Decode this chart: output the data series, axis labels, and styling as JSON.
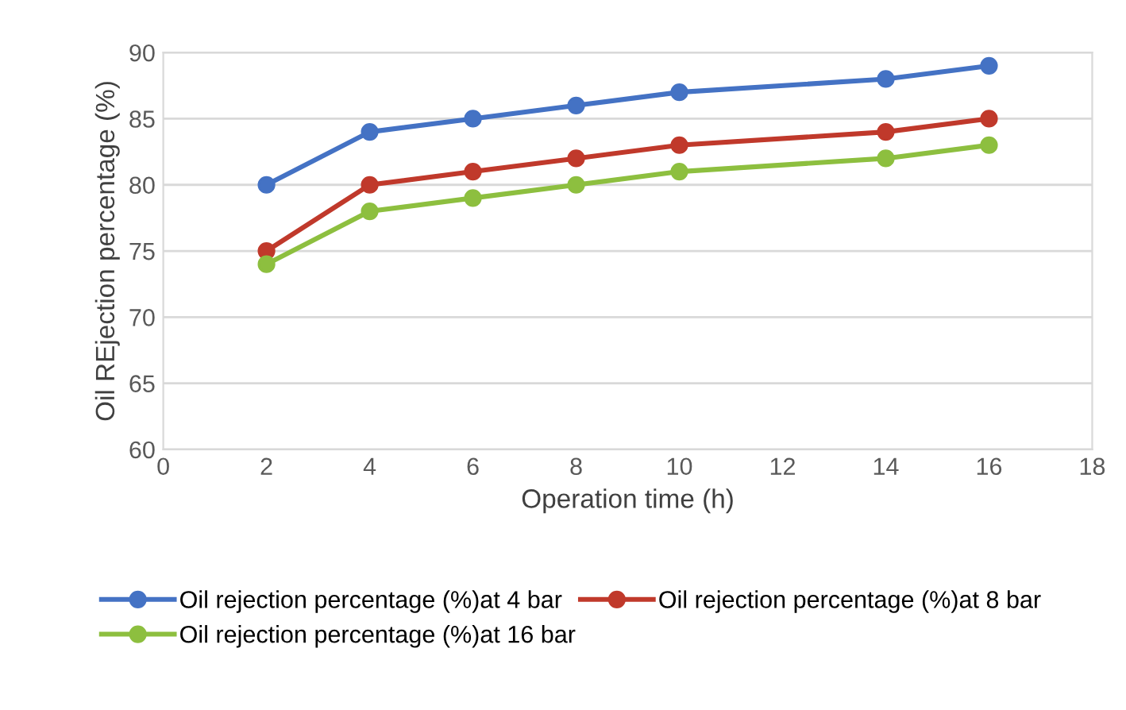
{
  "chart_data": {
    "type": "line",
    "xlabel": "Operation time (h)",
    "ylabel": "Oil REjection percentage (%)",
    "x": [
      2,
      4,
      6,
      8,
      10,
      14,
      16
    ],
    "series": [
      {
        "name": "Oil rejection percentage (%)at 4 bar",
        "color": "#4472c4",
        "values": [
          80,
          84,
          85,
          86,
          87,
          88,
          89
        ]
      },
      {
        "name": "Oil rejection percentage (%)at 8 bar",
        "color": "#c0392b",
        "values": [
          75,
          80,
          81,
          82,
          83,
          84,
          85
        ]
      },
      {
        "name": "Oil rejection percentage (%)at 16 bar",
        "color": "#8dbf3f",
        "values": [
          74,
          78,
          79,
          80,
          81,
          82,
          83
        ]
      }
    ],
    "xlim": [
      0,
      18
    ],
    "xticks": [
      0,
      2,
      4,
      6,
      8,
      10,
      12,
      14,
      16,
      18
    ],
    "ylim": [
      60,
      90
    ],
    "yticks": [
      60,
      65,
      70,
      75,
      80,
      85,
      90
    ],
    "grid": "y",
    "legend": "bottom",
    "marker": "circle",
    "line_style": "solid"
  }
}
